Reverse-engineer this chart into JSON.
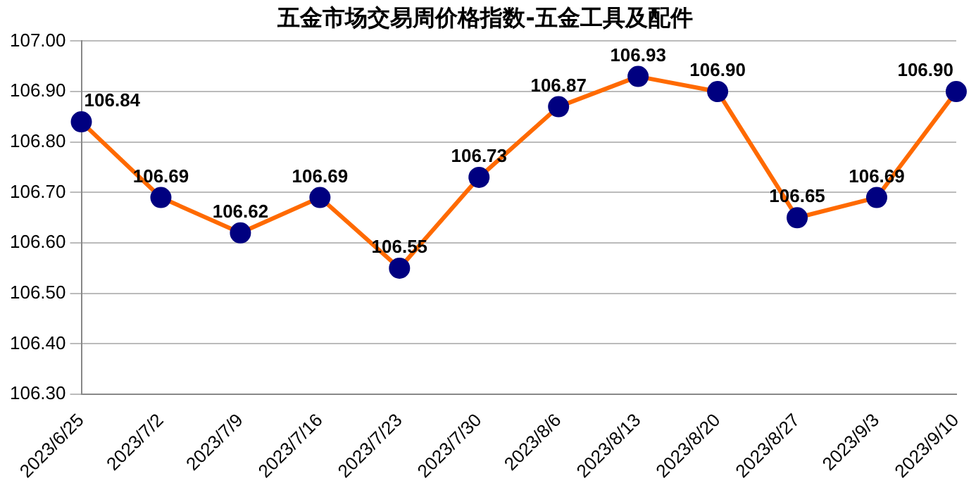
{
  "chart_data": {
    "type": "line",
    "title": "五金市场交易周价格指数-五金工具及配件",
    "categories": [
      "2023/6/25",
      "2023/7/2",
      "2023/7/9",
      "2023/7/16",
      "2023/7/23",
      "2023/7/30",
      "2023/8/6",
      "2023/8/13",
      "2023/8/20",
      "2023/8/27",
      "2023/9/3",
      "2023/9/10"
    ],
    "series": [
      {
        "color": "#ff6a00",
        "colors": [
          "#000080",
          "#000080",
          "#000080",
          "#000080",
          "#000080",
          "#000080",
          "#000080",
          "#000080",
          "#000080",
          "#000080",
          "#000080",
          "#000080"
        ],
        "values": [
          106.84,
          106.69,
          106.62,
          106.69,
          106.55,
          106.73,
          106.87,
          106.93,
          106.9,
          106.65,
          106.69,
          106.9
        ],
        "value_labels": [
          "106.84",
          "106.69",
          "106.62",
          "106.69",
          "106.55",
          "106.73",
          "106.87",
          "106.93",
          "106.90",
          "106.65",
          "106.69",
          "106.90"
        ]
      }
    ],
    "ylim": [
      106.3,
      107.0
    ],
    "yticks": [
      {
        "value": 106.3,
        "label": "106.30"
      },
      {
        "value": 106.4,
        "label": "106.40"
      },
      {
        "value": 106.5,
        "label": "106.50"
      },
      {
        "value": 106.6,
        "label": "106.60"
      },
      {
        "value": 106.7,
        "label": "106.70"
      },
      {
        "value": 106.8,
        "label": "106.80"
      },
      {
        "value": 106.9,
        "label": "106.90"
      },
      {
        "value": 107.0,
        "label": "107.00"
      }
    ],
    "grid": "y",
    "legend": false,
    "marker": "circle",
    "line_style": "solid"
  }
}
